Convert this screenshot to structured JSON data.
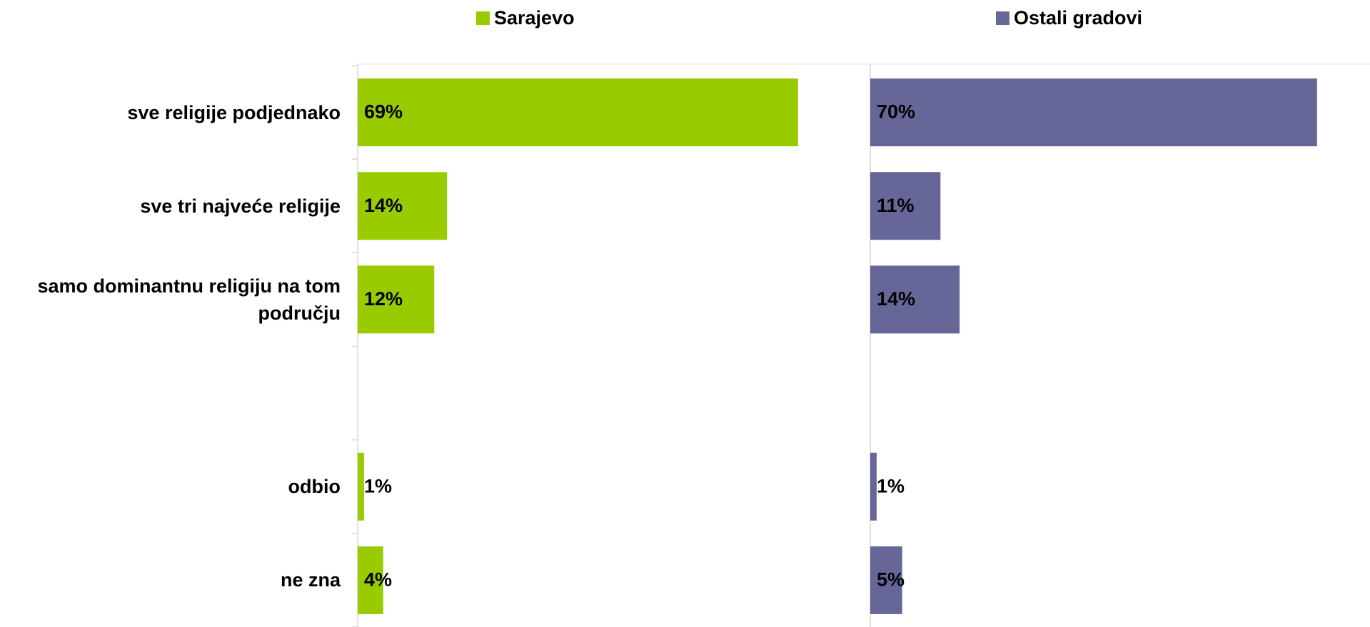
{
  "chart_data": {
    "type": "bar",
    "orientation": "horizontal",
    "categories": [
      "sve religije podjednako",
      "sve tri najveće religije",
      "samo dominantnu religiju na tom području",
      null,
      "odbio",
      "ne zna"
    ],
    "series": [
      {
        "name": "Sarajevo",
        "color": "#99cc00",
        "values": [
          69,
          14,
          12,
          null,
          1,
          4
        ],
        "value_labels": [
          "69%",
          "14%",
          "12%",
          null,
          "1%",
          "4%"
        ]
      },
      {
        "name": "Ostali gradovi",
        "color": "#666699",
        "values": [
          70,
          11,
          14,
          null,
          1,
          5
        ],
        "value_labels": [
          "70%",
          "11%",
          "14%",
          null,
          "1%",
          "5%"
        ]
      }
    ],
    "xlim": [
      0,
      80
    ]
  }
}
